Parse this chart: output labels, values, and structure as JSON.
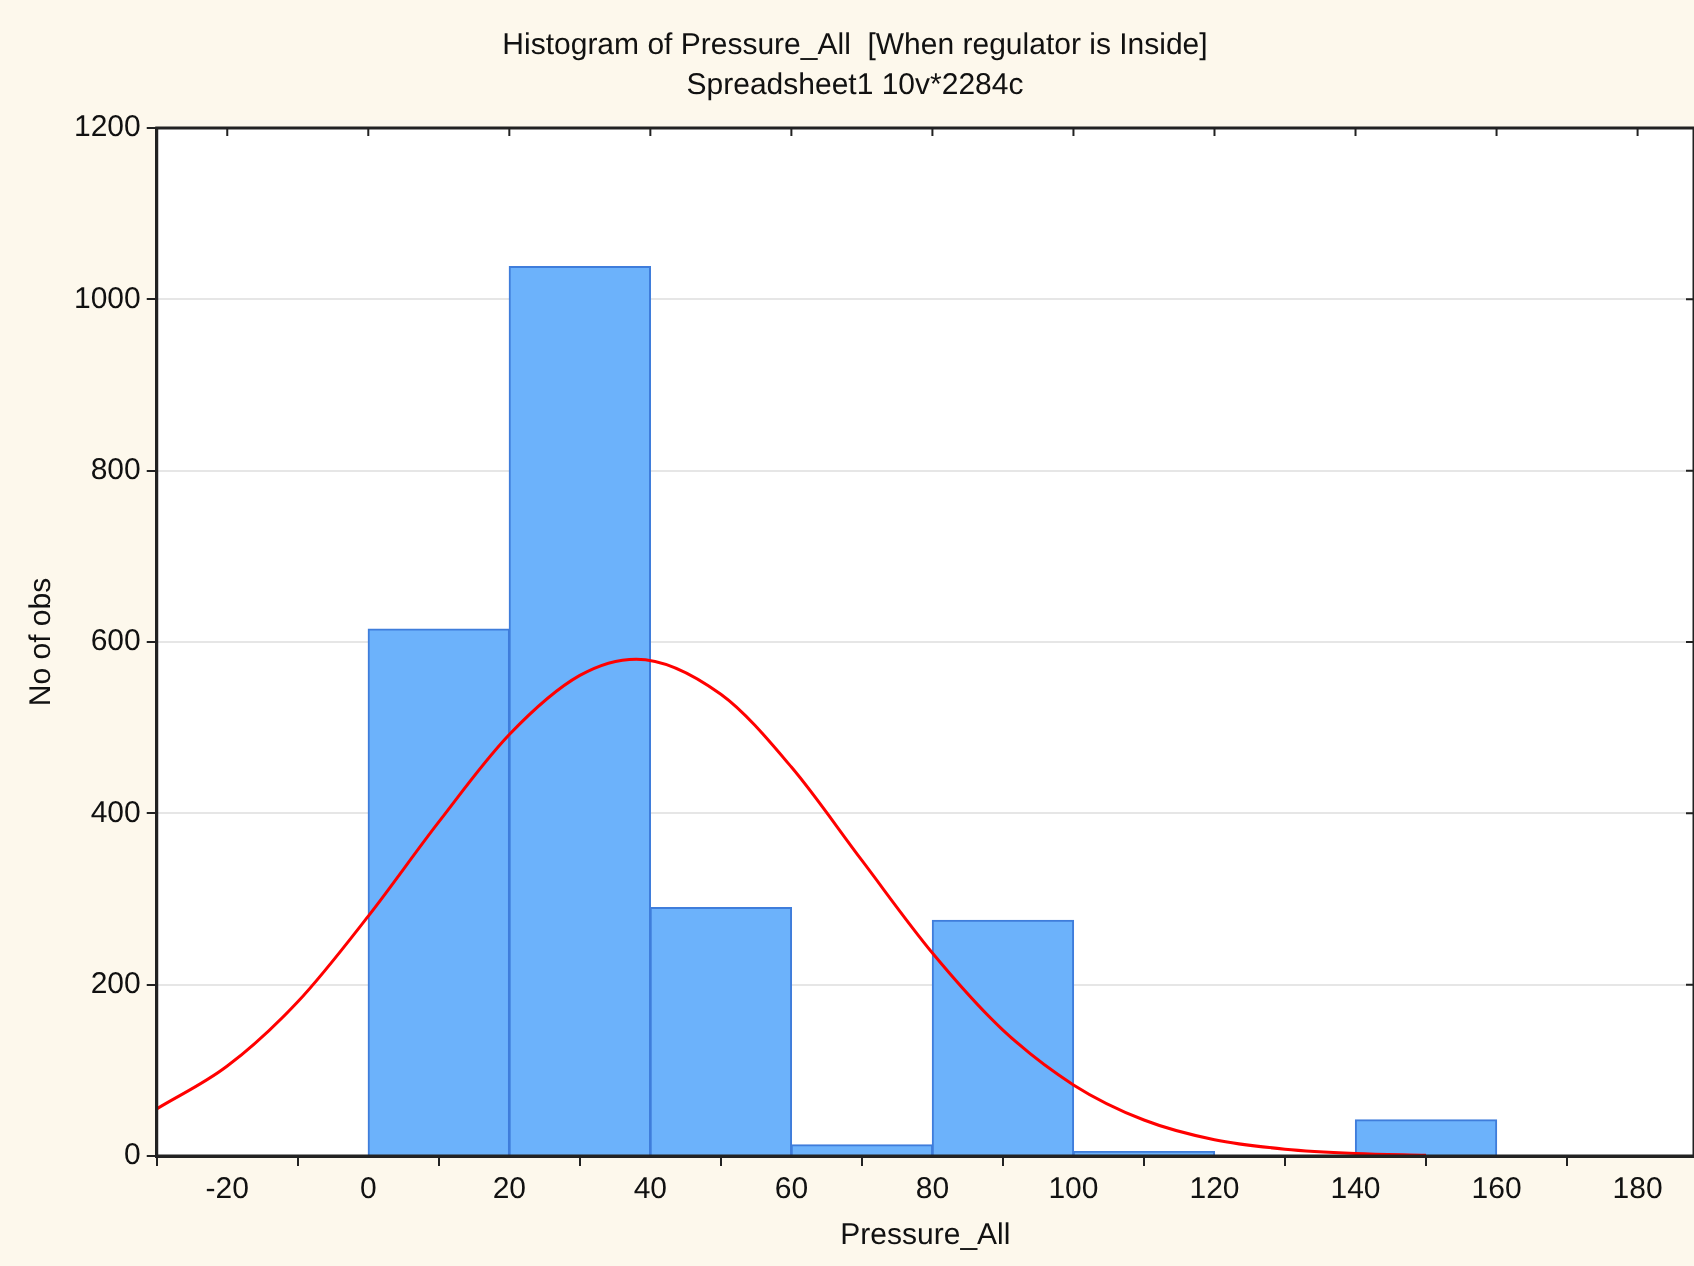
{
  "chart_data": {
    "type": "histogram",
    "title": "Histogram of Pressure_All  [When regulator is Inside]",
    "subtitle": "Spreadsheet1 10v*2284c",
    "xlabel": "Pressure_All",
    "ylabel": "No of obs",
    "bins": [
      0,
      20,
      40,
      60,
      80,
      100,
      120,
      140,
      160
    ],
    "series": [
      {
        "type": "histogram",
        "color": "#6cb2fb",
        "values": [
          615,
          1038,
          290,
          13,
          275,
          5,
          0,
          42
        ]
      },
      {
        "type": "line",
        "color": "#ff0000",
        "x": [
          -30,
          -20,
          -10,
          0,
          10,
          20,
          30,
          38,
          50,
          60,
          70,
          80,
          90,
          100,
          110,
          120,
          130,
          140,
          150
        ],
        "values": [
          55,
          105,
          180,
          280,
          390,
          492,
          561,
          580,
          539,
          454,
          345,
          237,
          147,
          83,
          42,
          19,
          8,
          3,
          1
        ]
      }
    ],
    "xlim": [
      -30,
      188
    ],
    "xticks": [
      -20,
      0,
      20,
      40,
      60,
      80,
      100,
      120,
      140,
      160,
      180
    ],
    "ylim": [
      0,
      1200
    ],
    "yticks": [
      0,
      200,
      400,
      600,
      800,
      1000,
      1200
    ],
    "grid": "y",
    "legend": false,
    "marker": "none",
    "line_style": "solid"
  }
}
